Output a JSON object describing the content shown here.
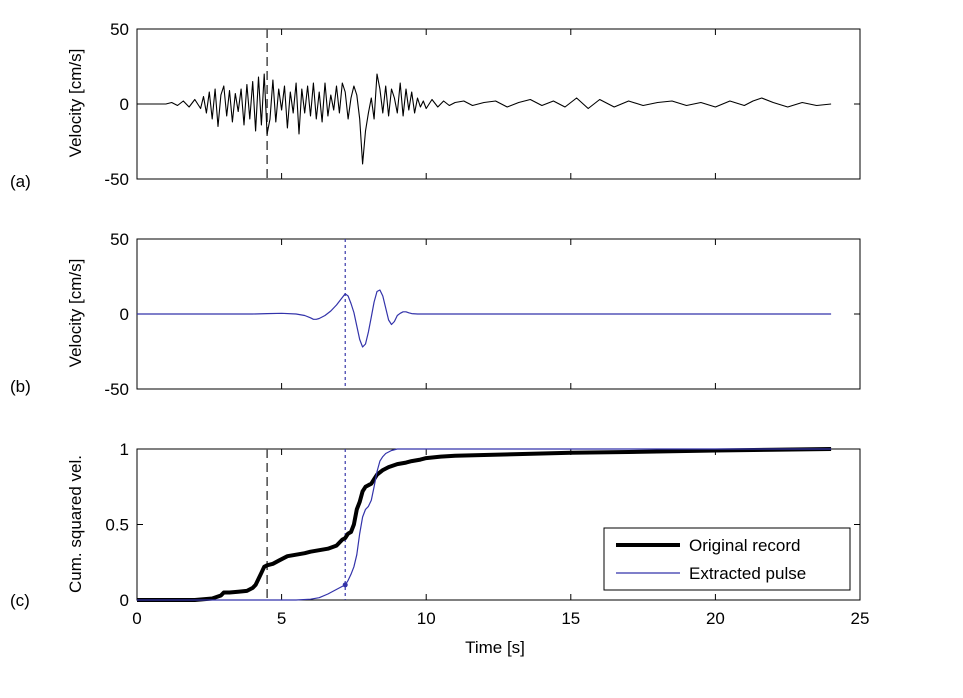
{
  "chart_data": [
    {
      "panel_label": "(a)",
      "type": "line",
      "title": "",
      "xlabel": "",
      "ylabel": "Velocity [cm/s]",
      "xlim": [
        0,
        25
      ],
      "ylim": [
        -50,
        50
      ],
      "x_ticks": [
        0,
        5,
        10,
        15,
        20,
        25
      ],
      "y_ticks": [
        -50,
        0,
        50
      ],
      "y_tick_labels": [
        "-50",
        "0",
        "50"
      ],
      "show_x_tick_labels": false,
      "vlines": [
        {
          "x": 4.5,
          "style": "dashed",
          "color": "#555555"
        }
      ],
      "series": [
        {
          "color": "#000000",
          "stroke_width": 1.1,
          "x": [
            0,
            0.5,
            1,
            1.2,
            1.4,
            1.6,
            1.8,
            2,
            2.2,
            2.3,
            2.4,
            2.5,
            2.6,
            2.7,
            2.8,
            2.9,
            3,
            3.1,
            3.2,
            3.3,
            3.4,
            3.5,
            3.6,
            3.7,
            3.8,
            3.9,
            4,
            4.1,
            4.2,
            4.3,
            4.4,
            4.5,
            4.6,
            4.7,
            4.8,
            4.9,
            5,
            5.1,
            5.2,
            5.3,
            5.4,
            5.5,
            5.6,
            5.7,
            5.8,
            5.9,
            6,
            6.1,
            6.2,
            6.3,
            6.4,
            6.5,
            6.6,
            6.7,
            6.8,
            6.9,
            7,
            7.1,
            7.2,
            7.3,
            7.4,
            7.5,
            7.6,
            7.7,
            7.8,
            7.9,
            8,
            8.1,
            8.2,
            8.3,
            8.4,
            8.5,
            8.6,
            8.7,
            8.8,
            8.9,
            9,
            9.1,
            9.2,
            9.3,
            9.4,
            9.5,
            9.6,
            9.7,
            9.8,
            9.9,
            10,
            10.2,
            10.4,
            10.6,
            10.8,
            11,
            11.3,
            11.6,
            12,
            12.4,
            12.8,
            13.2,
            13.6,
            14,
            14.4,
            14.8,
            15.2,
            15.6,
            16,
            16.5,
            17,
            17.5,
            18,
            18.5,
            19,
            19.5,
            20,
            20.5,
            21,
            21.3,
            21.6,
            22,
            22.5,
            23,
            23.5,
            24
          ],
          "y": [
            0,
            0,
            0,
            1,
            -1,
            2,
            -2,
            3,
            -3,
            5,
            -6,
            8,
            -10,
            10,
            -15,
            6,
            12,
            -8,
            9,
            -12,
            7,
            -5,
            10,
            -14,
            13,
            -10,
            15,
            -18,
            18,
            -14,
            20,
            -20,
            -10,
            16,
            -12,
            10,
            -4,
            12,
            -16,
            8,
            -6,
            14,
            -20,
            10,
            -6,
            12,
            -8,
            14,
            -10,
            8,
            -12,
            14,
            -8,
            6,
            -4,
            12,
            -6,
            14,
            8,
            -10,
            4,
            12,
            6,
            -10,
            -40,
            -18,
            -6,
            4,
            -10,
            20,
            10,
            -6,
            12,
            -8,
            10,
            4,
            -6,
            14,
            -8,
            10,
            -4,
            8,
            -6,
            4,
            -2,
            2,
            -3,
            3,
            -2,
            2,
            -1,
            1,
            2,
            -1,
            1,
            2,
            -2,
            1,
            3,
            -1,
            2,
            -2,
            4,
            -3,
            3,
            -2,
            2,
            -1,
            1,
            2,
            -1,
            1,
            -2,
            2,
            -1,
            2,
            4,
            1,
            -2,
            1,
            -1,
            0
          ]
        }
      ]
    },
    {
      "panel_label": "(b)",
      "type": "line",
      "title": "",
      "xlabel": "",
      "ylabel": "Velocity [cm/s]",
      "xlim": [
        0,
        25
      ],
      "ylim": [
        -50,
        50
      ],
      "x_ticks": [
        0,
        5,
        10,
        15,
        20,
        25
      ],
      "y_ticks": [
        -50,
        0,
        50
      ],
      "y_tick_labels": [
        "-50",
        "0",
        "50"
      ],
      "show_x_tick_labels": false,
      "vlines": [
        {
          "x": 7.2,
          "style": "dotted",
          "color": "#3a3aaa"
        }
      ],
      "series": [
        {
          "color": "#3333aa",
          "stroke_width": 1.2,
          "x": [
            0,
            4,
            4.5,
            5,
            5.5,
            5.8,
            6,
            6.1,
            6.2,
            6.3,
            6.5,
            6.7,
            6.9,
            7.1,
            7.2,
            7.3,
            7.4,
            7.5,
            7.6,
            7.7,
            7.8,
            7.9,
            8,
            8.1,
            8.2,
            8.3,
            8.4,
            8.5,
            8.6,
            8.7,
            8.8,
            8.9,
            9,
            9.1,
            9.2,
            9.3,
            9.4,
            9.5,
            9.7,
            10,
            11,
            12,
            24
          ],
          "y": [
            0,
            0,
            0.3,
            0.5,
            0,
            -1,
            -2.5,
            -3.5,
            -3.5,
            -3,
            -1,
            2,
            6,
            11,
            13.5,
            12,
            7,
            1,
            -8,
            -17,
            -22,
            -20,
            -12,
            -2,
            8,
            15,
            16,
            12,
            4,
            -4,
            -7,
            -5,
            -1,
            0.5,
            1.5,
            1.5,
            0.8,
            0.3,
            0,
            0,
            0,
            0,
            0
          ]
        }
      ]
    },
    {
      "panel_label": "(c)",
      "type": "line",
      "title": "",
      "xlabel": "Time [s]",
      "ylabel": "Cum. squared vel.",
      "xlim": [
        0,
        25
      ],
      "ylim": [
        0,
        1
      ],
      "x_ticks": [
        0,
        5,
        10,
        15,
        20,
        25
      ],
      "y_ticks": [
        0,
        0.5,
        1
      ],
      "y_tick_labels": [
        "0",
        "0.5",
        "1"
      ],
      "show_x_tick_labels": true,
      "vlines": [
        {
          "x": 4.5,
          "style": "dashed",
          "color": "#555555"
        },
        {
          "x": 7.2,
          "style": "dotted",
          "color": "#3a3aaa"
        }
      ],
      "marker": {
        "x": 7.2,
        "y": 0.1,
        "color": "#3333aa"
      },
      "legend_position": "bottom-right",
      "series": [
        {
          "name": "Original record",
          "color": "#000000",
          "stroke_width": 4,
          "x": [
            0,
            2,
            2.3,
            2.6,
            2.9,
            3,
            3.2,
            3.5,
            3.8,
            4,
            4.1,
            4.2,
            4.3,
            4.4,
            4.5,
            4.7,
            4.9,
            5,
            5.2,
            5.5,
            5.8,
            6,
            6.3,
            6.6,
            6.9,
            7,
            7.1,
            7.2,
            7.3,
            7.4,
            7.5,
            7.6,
            7.7,
            7.8,
            7.9,
            8,
            8.1,
            8.2,
            8.3,
            8.5,
            8.7,
            9,
            9.3,
            9.5,
            9.8,
            10,
            10.5,
            11,
            12,
            13,
            14,
            15,
            17,
            20,
            22,
            24
          ],
          "y": [
            0,
            0,
            0.005,
            0.01,
            0.03,
            0.05,
            0.05,
            0.055,
            0.06,
            0.08,
            0.1,
            0.14,
            0.18,
            0.22,
            0.23,
            0.24,
            0.26,
            0.27,
            0.29,
            0.3,
            0.31,
            0.32,
            0.33,
            0.34,
            0.36,
            0.38,
            0.4,
            0.41,
            0.44,
            0.45,
            0.5,
            0.6,
            0.65,
            0.72,
            0.75,
            0.76,
            0.77,
            0.8,
            0.83,
            0.86,
            0.88,
            0.9,
            0.91,
            0.92,
            0.93,
            0.94,
            0.95,
            0.955,
            0.96,
            0.965,
            0.97,
            0.975,
            0.98,
            0.99,
            0.995,
            1
          ]
        },
        {
          "name": "Extracted pulse",
          "color": "#3333aa",
          "stroke_width": 1.2,
          "x": [
            0,
            5.5,
            6,
            6.3,
            6.6,
            7,
            7.2,
            7.3,
            7.4,
            7.5,
            7.6,
            7.7,
            7.8,
            7.9,
            8,
            8.1,
            8.2,
            8.3,
            8.4,
            8.5,
            8.6,
            8.8,
            9,
            9.2,
            9.4,
            24
          ],
          "y": [
            0,
            0,
            0.005,
            0.015,
            0.04,
            0.08,
            0.1,
            0.13,
            0.17,
            0.22,
            0.3,
            0.44,
            0.55,
            0.6,
            0.62,
            0.66,
            0.75,
            0.85,
            0.92,
            0.95,
            0.97,
            0.99,
            1,
            1,
            1,
            1
          ]
        }
      ]
    }
  ]
}
